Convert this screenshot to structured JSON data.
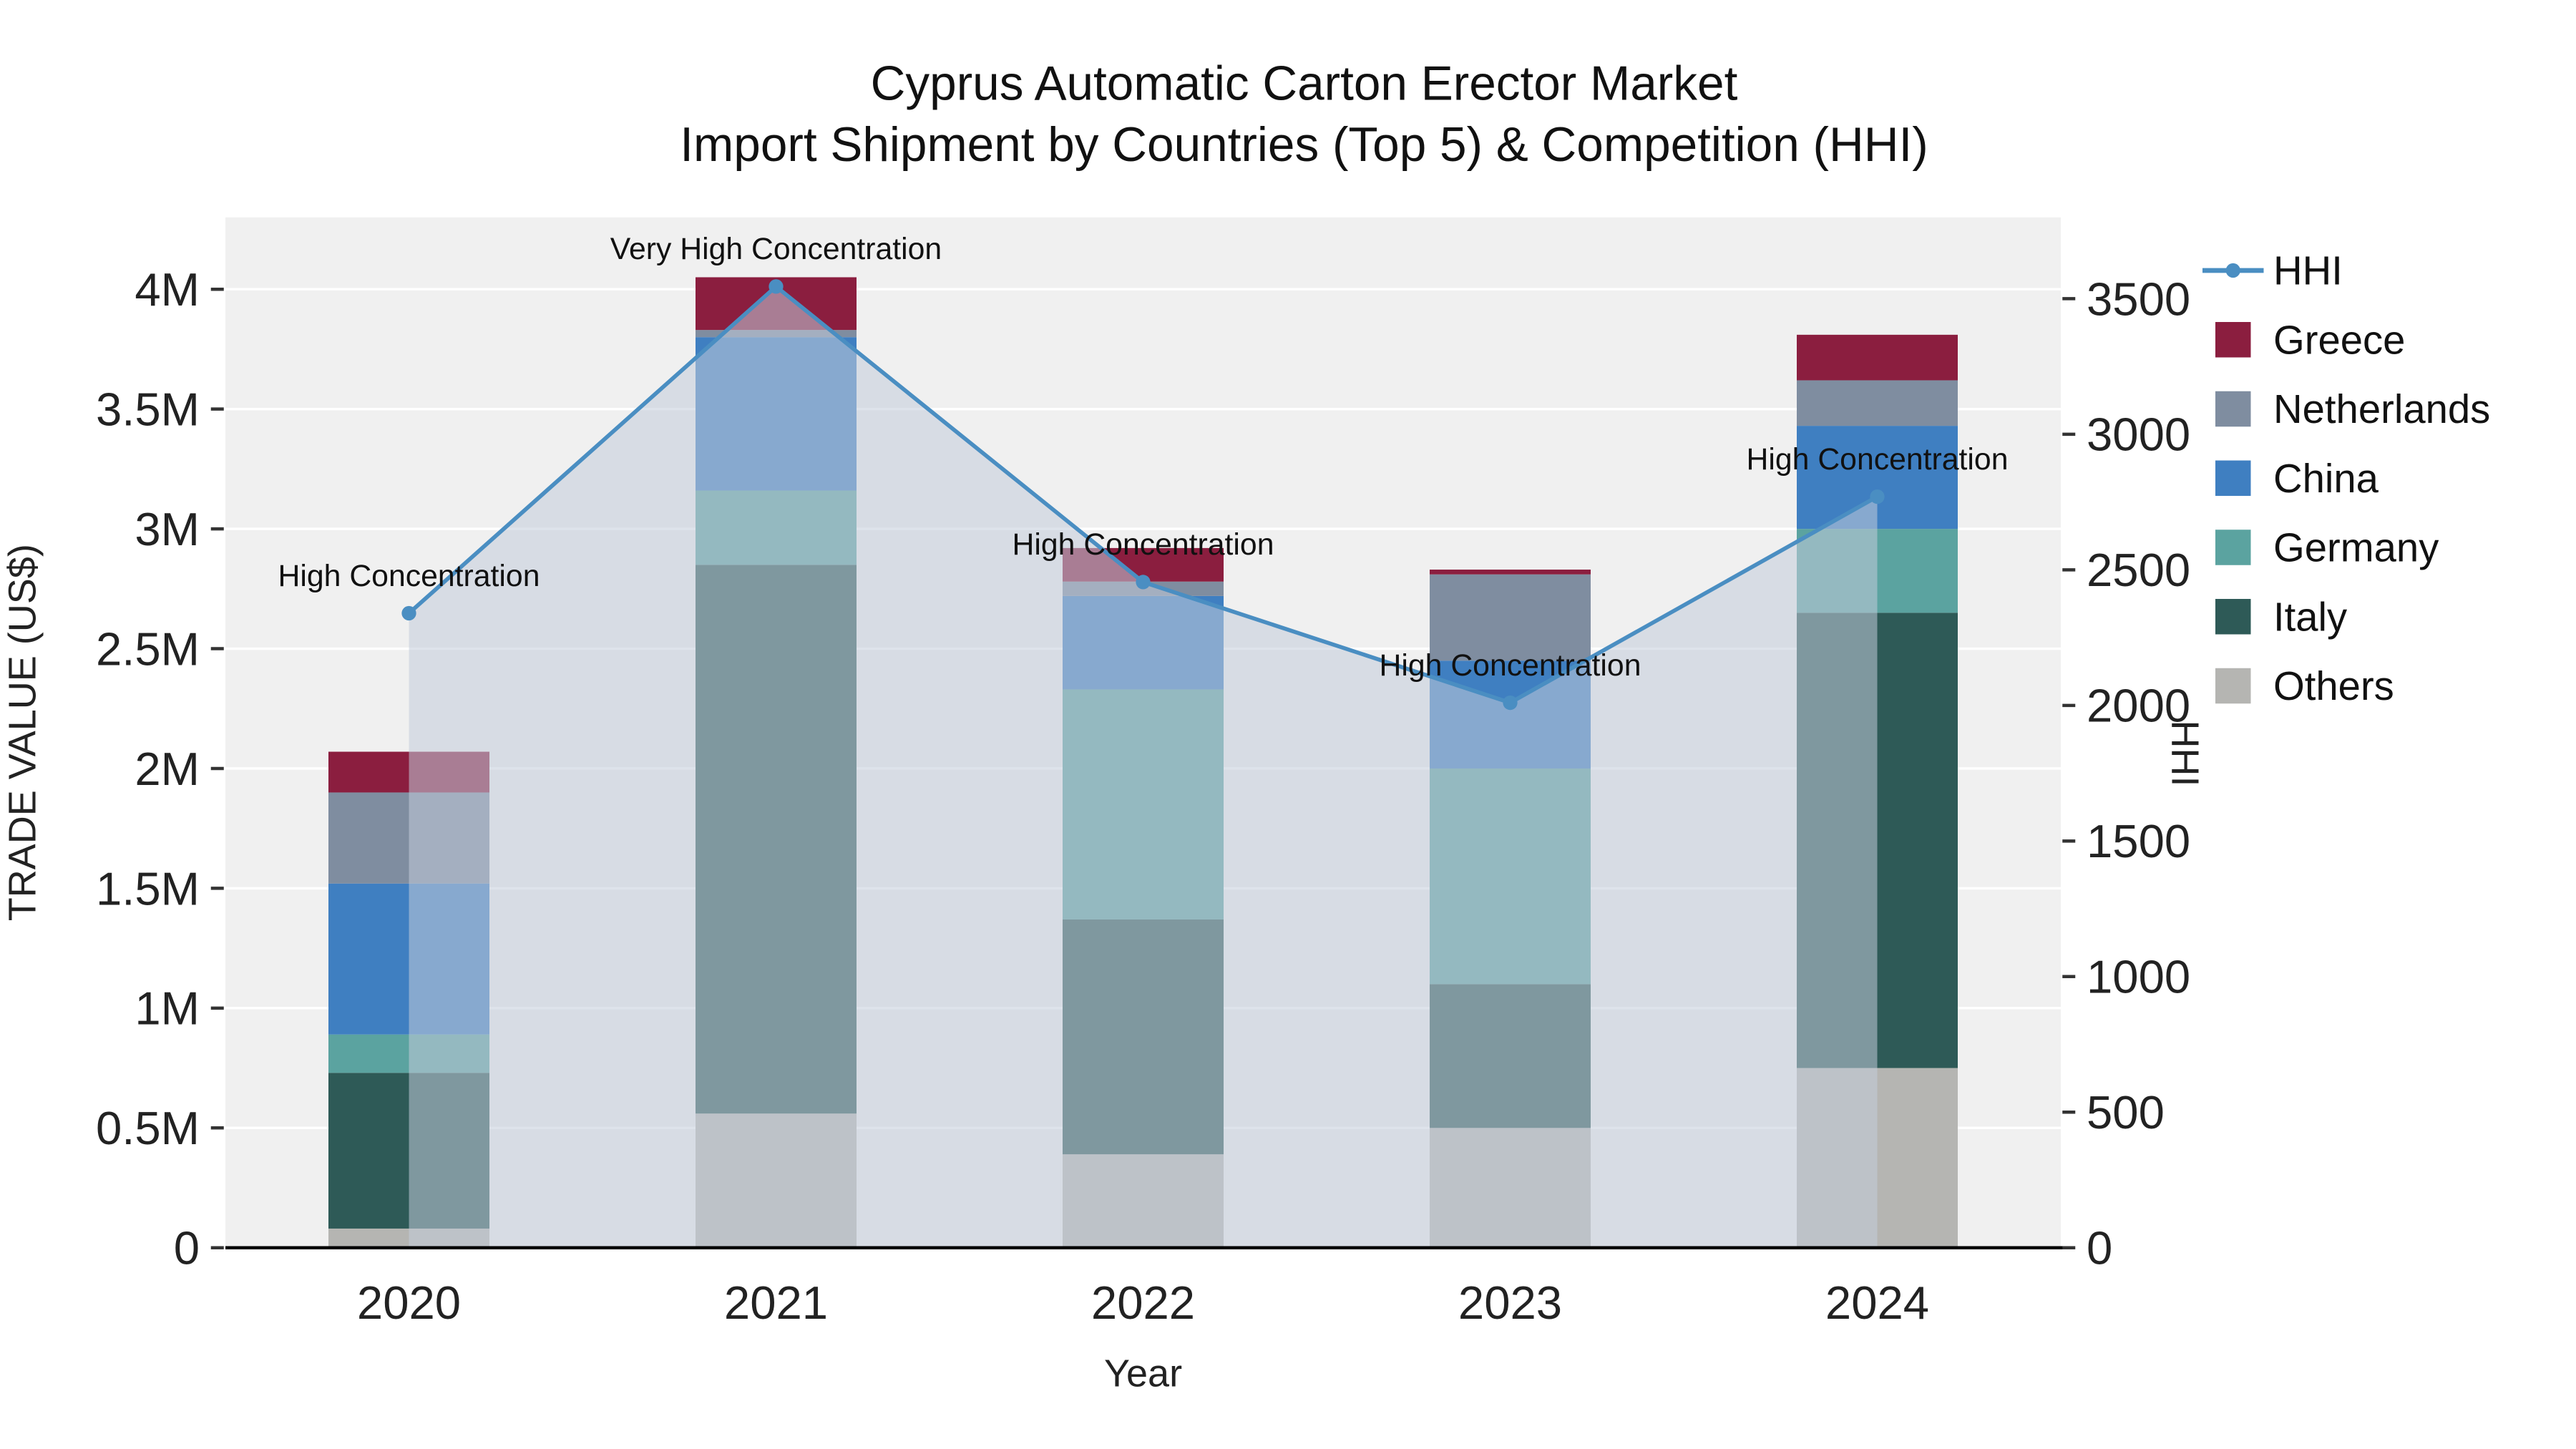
{
  "title": {
    "line1": "Cyprus Automatic Carton Erector Market",
    "line2": "Import Shipment by Countries (Top 5) & Competition (HHI)"
  },
  "colors": {
    "plot_background": "#f0f0f0",
    "hhi_line": "#4a8ec2",
    "greece": "#8b1e3f",
    "netherlands": "#7f8da0",
    "china": "#3f7fc1",
    "germany": "#5ba3a0",
    "italy": "#2e5a57",
    "others": "#b5b5b2"
  },
  "chart_data": {
    "type": "bar",
    "subtype": "stacked-bars-with-hhi-line-overlay",
    "title": "Cyprus Automatic Carton Erector Market Import Shipment by Countries (Top 5) & Competition (HHI)",
    "xlabel": "Year",
    "ylabel_left": "TRADE VALUE (US$)",
    "ylabel_right": "HHI",
    "categories": [
      "2020",
      "2021",
      "2022",
      "2023",
      "2024"
    ],
    "ylim_left": [
      0,
      4300000
    ],
    "ylim_right": [
      0,
      3800
    ],
    "grid": true,
    "legend_position": "right",
    "yticks_left": {
      "values": [
        0,
        500000,
        1000000,
        1500000,
        2000000,
        2500000,
        3000000,
        3500000,
        4000000
      ],
      "labels": [
        "0",
        "0.5M",
        "1M",
        "1.5M",
        "2M",
        "2.5M",
        "3M",
        "3.5M",
        "4M"
      ]
    },
    "yticks_right": {
      "values": [
        0,
        500,
        1000,
        1500,
        2000,
        2500,
        3000,
        3500
      ],
      "labels": [
        "0",
        "500",
        "1000",
        "1500",
        "2000",
        "2500",
        "3000",
        "3500"
      ]
    },
    "series": [
      {
        "name": "Others",
        "color": "#b5b5b2",
        "values": [
          80000,
          560000,
          390000,
          500000,
          750000
        ]
      },
      {
        "name": "Italy",
        "color": "#2e5a57",
        "values": [
          650000,
          2290000,
          980000,
          600000,
          1900000
        ]
      },
      {
        "name": "Germany",
        "color": "#5ba3a0",
        "values": [
          160000,
          310000,
          960000,
          900000,
          350000
        ]
      },
      {
        "name": "China",
        "color": "#3f7fc1",
        "values": [
          630000,
          640000,
          390000,
          450000,
          430000
        ]
      },
      {
        "name": "Netherlands",
        "color": "#7f8da0",
        "values": [
          380000,
          30000,
          60000,
          360000,
          190000
        ]
      },
      {
        "name": "Greece",
        "color": "#8b1e3f",
        "values": [
          170000,
          220000,
          140000,
          20000,
          190000
        ]
      }
    ],
    "hhi": {
      "name": "HHI",
      "color": "#4a8ec2",
      "area_fill": "rgba(194,204,218,0.55)",
      "values": [
        2340,
        3545,
        2455,
        2010,
        2770
      ]
    },
    "annotations": [
      "High Concentration",
      "Very High Concentration",
      "High Concentration",
      "High Concentration",
      "High Concentration"
    ],
    "legend": [
      "HHI",
      "Greece",
      "Netherlands",
      "China",
      "Germany",
      "Italy",
      "Others"
    ]
  }
}
